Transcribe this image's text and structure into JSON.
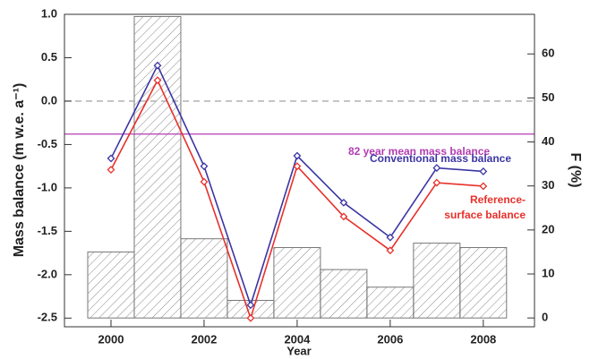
{
  "chart_data": {
    "type": "bar-line",
    "x_label": "Year",
    "y_label": "Mass balance (m w.e. a⁻¹)",
    "y2_label": "F (%)",
    "x": [
      2000,
      2001,
      2002,
      2003,
      2004,
      2005,
      2006,
      2007,
      2008
    ],
    "xlim": [
      1999,
      2009.1
    ],
    "xticks": [
      2000,
      2002,
      2004,
      2006,
      2008
    ],
    "ylim": [
      -2.6,
      1.0
    ],
    "yticks": [
      {
        "value": 1.0,
        "label": "1.0"
      },
      0.5,
      {
        "value": 0.0,
        "label": "0.0"
      },
      -0.5,
      {
        "value": -1.0,
        "label": "-1.0"
      },
      -1.5,
      {
        "value": -2.0,
        "label": "-2.0"
      },
      -2.5
    ],
    "y2lim": [
      -2,
      69
    ],
    "y2ticks": [
      0,
      10,
      20,
      30,
      40,
      50,
      60
    ],
    "bars": {
      "axis": "y2",
      "color": "#777777",
      "values": [
        15,
        68.5,
        18,
        4,
        16,
        11,
        7,
        17,
        16
      ]
    },
    "series": [
      {
        "name": "Conventional mass balance",
        "color": "#3b35a3",
        "values": [
          -0.66,
          0.41,
          -0.75,
          -2.35,
          -0.63,
          -1.17,
          -1.57,
          -0.77,
          -0.81
        ]
      },
      {
        "name": [
          "Reference-",
          "surface balance"
        ],
        "color": "#e8302a",
        "values": [
          -0.79,
          0.24,
          -0.93,
          -2.5,
          -0.75,
          -1.33,
          -1.72,
          -0.94,
          -0.98
        ]
      }
    ],
    "reference_lines": [
      {
        "value": -0.38,
        "label": "82 year mean mass balance",
        "color": "#b23db2",
        "style": "solid"
      },
      {
        "value": 0.0,
        "color": "#aaaaaa",
        "style": "dashed"
      }
    ]
  }
}
